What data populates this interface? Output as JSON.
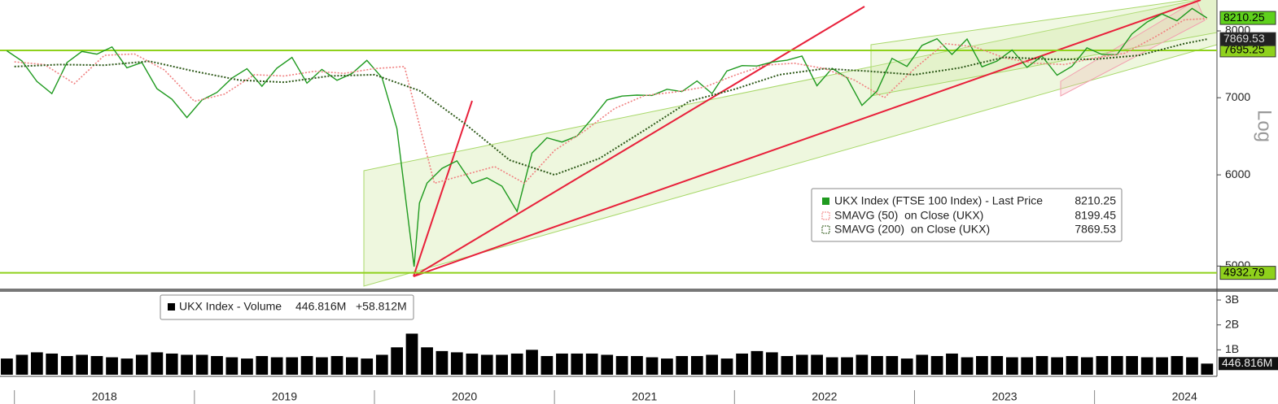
{
  "chart_data": [
    {
      "type": "line",
      "log_scale": true,
      "scale_label": "Log",
      "xlim": [
        2017.92,
        2024.68
      ],
      "ylim": [
        4780,
        8510
      ],
      "yticks": [
        5000,
        6000,
        7000,
        8000
      ],
      "levels": [
        {
          "value": 7695.25,
          "color": "#8fd11c"
        },
        {
          "value": 4932.79,
          "color": "#8fd11c"
        }
      ],
      "series": [
        {
          "name": "UKX Index (FTSE 100 Index) - Last Price",
          "color": "#1f9a1f",
          "last": 8210.25,
          "x": [
            2017.958,
            2018.042,
            2018.125,
            2018.208,
            2018.292,
            2018.375,
            2018.458,
            2018.542,
            2018.625,
            2018.708,
            2018.792,
            2018.875,
            2018.958,
            2019.042,
            2019.125,
            2019.208,
            2019.292,
            2019.375,
            2019.458,
            2019.542,
            2019.625,
            2019.708,
            2019.792,
            2019.875,
            2019.958,
            2020.042,
            2020.125,
            2020.22,
            2020.25,
            2020.292,
            2020.375,
            2020.458,
            2020.542,
            2020.625,
            2020.708,
            2020.792,
            2020.875,
            2020.958,
            2021.042,
            2021.125,
            2021.208,
            2021.292,
            2021.375,
            2021.458,
            2021.542,
            2021.625,
            2021.708,
            2021.792,
            2021.875,
            2021.958,
            2022.042,
            2022.125,
            2022.208,
            2022.292,
            2022.375,
            2022.458,
            2022.542,
            2022.625,
            2022.708,
            2022.792,
            2022.875,
            2022.958,
            2023.042,
            2023.125,
            2023.208,
            2023.292,
            2023.375,
            2023.458,
            2023.542,
            2023.625,
            2023.708,
            2023.792,
            2023.875,
            2023.958,
            2024.042,
            2024.125,
            2024.208,
            2024.292,
            2024.375,
            2024.458,
            2024.542,
            2024.625
          ],
          "values": [
            7688,
            7534,
            7232,
            7057,
            7509,
            7678,
            7637,
            7749,
            7432,
            7510,
            7128,
            6980,
            6728,
            6969,
            7075,
            7279,
            7418,
            7162,
            7426,
            7587,
            7207,
            7408,
            7248,
            7347,
            7542,
            7286,
            6581,
            4994,
            5672,
            5901,
            6077,
            6170,
            5898,
            5964,
            5866,
            5577,
            6266,
            6461,
            6407,
            6483,
            6714,
            6970,
            7023,
            7037,
            7032,
            7120,
            7086,
            7238,
            7059,
            7385,
            7464,
            7458,
            7516,
            7545,
            7608,
            7169,
            7423,
            7284,
            6894,
            7095,
            7573,
            7452,
            7772,
            7876,
            7632,
            7871,
            7446,
            7532,
            7699,
            7439,
            7608,
            7322,
            7454,
            7733,
            7631,
            7630,
            7953,
            8144,
            8275,
            8164,
            8368,
            8210.25
          ]
        },
        {
          "name": "SMAVG (50)  on Close (UKX)",
          "color": "#f08080",
          "last": 8199.45,
          "x": [
            2018.0,
            2018.167,
            2018.333,
            2018.5,
            2018.667,
            2018.833,
            2019.0,
            2019.167,
            2019.333,
            2019.5,
            2019.667,
            2019.833,
            2020.0,
            2020.167,
            2020.333,
            2020.5,
            2020.667,
            2020.833,
            2021.0,
            2021.167,
            2021.333,
            2021.5,
            2021.667,
            2021.833,
            2022.0,
            2022.167,
            2022.333,
            2022.5,
            2022.667,
            2022.833,
            2023.0,
            2023.167,
            2023.333,
            2023.5,
            2023.667,
            2023.833,
            2024.0,
            2024.167,
            2024.333,
            2024.5,
            2024.625
          ],
          "values": [
            7520,
            7480,
            7200,
            7620,
            7640,
            7400,
            6950,
            7050,
            7330,
            7310,
            7380,
            7350,
            7420,
            7450,
            5900,
            6000,
            6100,
            5900,
            6300,
            6550,
            6850,
            7030,
            7080,
            7150,
            7320,
            7470,
            7500,
            7420,
            7250,
            7000,
            7420,
            7800,
            7750,
            7580,
            7500,
            7480,
            7580,
            7650,
            7900,
            8180,
            8199.45
          ]
        },
        {
          "name": "SMAVG (200)  on Close (UKX)",
          "color": "#2f5a1a",
          "last": 7869.53,
          "x": [
            2018.0,
            2018.25,
            2018.5,
            2018.75,
            2019.0,
            2019.25,
            2019.5,
            2019.75,
            2020.0,
            2020.25,
            2020.5,
            2020.75,
            2021.0,
            2021.25,
            2021.5,
            2021.75,
            2022.0,
            2022.25,
            2022.5,
            2022.75,
            2023.0,
            2023.25,
            2023.5,
            2023.75,
            2024.0,
            2024.25,
            2024.5,
            2024.625
          ],
          "values": [
            7450,
            7480,
            7470,
            7530,
            7380,
            7250,
            7220,
            7310,
            7330,
            7100,
            6650,
            6180,
            6000,
            6200,
            6560,
            6950,
            7120,
            7330,
            7420,
            7380,
            7330,
            7430,
            7590,
            7560,
            7560,
            7620,
            7800,
            7869.53
          ]
        }
      ]
    },
    {
      "type": "bar",
      "name": "UKX Index - Volume",
      "color": "#000000",
      "last": {
        "value": 446816000,
        "label": "446.816M"
      },
      "change": "+58.812M",
      "xlim": [
        2017.92,
        2024.68
      ],
      "ylim": [
        0,
        3230000000
      ],
      "xticks": [
        2018,
        2019,
        2020,
        2021,
        2022,
        2023,
        2024
      ],
      "yticks": [
        {
          "value": 1000000000,
          "label": "1B"
        },
        {
          "value": 2000000000,
          "label": "2B"
        },
        {
          "value": 3000000000,
          "label": "3B"
        }
      ],
      "x": [
        2017.958,
        2018.042,
        2018.125,
        2018.208,
        2018.292,
        2018.375,
        2018.458,
        2018.542,
        2018.625,
        2018.708,
        2018.792,
        2018.875,
        2018.958,
        2019.042,
        2019.125,
        2019.208,
        2019.292,
        2019.375,
        2019.458,
        2019.542,
        2019.625,
        2019.708,
        2019.792,
        2019.875,
        2019.958,
        2020.042,
        2020.125,
        2020.208,
        2020.292,
        2020.375,
        2020.458,
        2020.542,
        2020.625,
        2020.708,
        2020.792,
        2020.875,
        2020.958,
        2021.042,
        2021.125,
        2021.208,
        2021.292,
        2021.375,
        2021.458,
        2021.542,
        2021.625,
        2021.708,
        2021.792,
        2021.875,
        2021.958,
        2022.042,
        2022.125,
        2022.208,
        2022.292,
        2022.375,
        2022.458,
        2022.542,
        2022.625,
        2022.708,
        2022.792,
        2022.875,
        2022.958,
        2023.042,
        2023.125,
        2023.208,
        2023.292,
        2023.375,
        2023.458,
        2023.542,
        2023.625,
        2023.708,
        2023.792,
        2023.875,
        2023.958,
        2024.042,
        2024.125,
        2024.208,
        2024.292,
        2024.375,
        2024.458,
        2024.542,
        2024.625
      ],
      "values": [
        650000000,
        800000000,
        900000000,
        850000000,
        750000000,
        800000000,
        750000000,
        700000000,
        650000000,
        800000000,
        900000000,
        850000000,
        800000000,
        800000000,
        750000000,
        700000000,
        650000000,
        750000000,
        700000000,
        700000000,
        750000000,
        700000000,
        750000000,
        700000000,
        650000000,
        800000000,
        1100000000,
        1650000000,
        1100000000,
        950000000,
        900000000,
        850000000,
        800000000,
        800000000,
        850000000,
        1000000000,
        750000000,
        850000000,
        850000000,
        850000000,
        800000000,
        750000000,
        750000000,
        700000000,
        650000000,
        750000000,
        750000000,
        800000000,
        650000000,
        850000000,
        950000000,
        900000000,
        750000000,
        800000000,
        800000000,
        700000000,
        700000000,
        800000000,
        750000000,
        750000000,
        650000000,
        800000000,
        750000000,
        850000000,
        700000000,
        750000000,
        750000000,
        700000000,
        700000000,
        750000000,
        700000000,
        750000000,
        700000000,
        750000000,
        750000000,
        750000000,
        700000000,
        700000000,
        750000000,
        700000000,
        446816000
      ]
    }
  ]
}
